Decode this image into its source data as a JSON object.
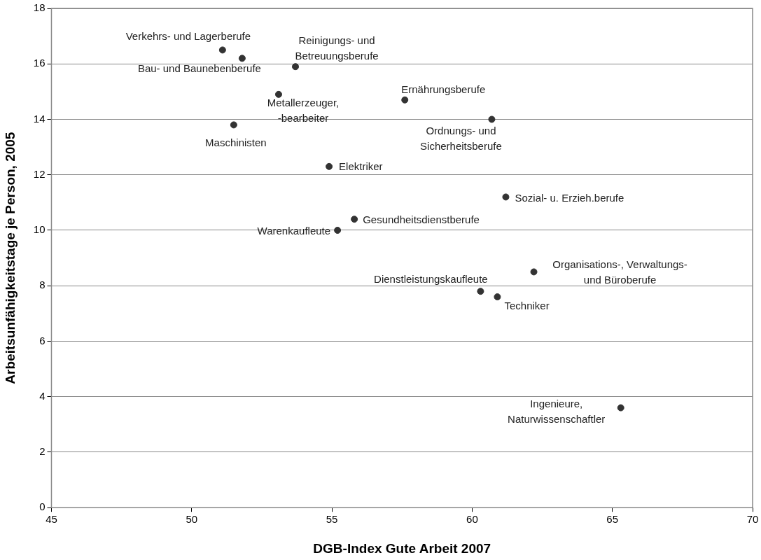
{
  "chart_data": {
    "type": "scatter",
    "xlabel": "DGB-Index Gute Arbeit 2007",
    "ylabel": "Arbeitsunfähigkeitstage je Person, 2005",
    "x": [
      51.1,
      51.8,
      53.7,
      53.1,
      51.5,
      54.9,
      57.6,
      60.7,
      61.2,
      55.8,
      55.2,
      62.2,
      60.3,
      60.9,
      65.3
    ],
    "series": [
      {
        "color": "#333333",
        "values": [
          16.5,
          16.2,
          15.9,
          14.9,
          13.8,
          12.3,
          14.7,
          14.0,
          11.2,
          10.4,
          10.0,
          8.5,
          7.8,
          7.6,
          3.6
        ]
      }
    ],
    "xlim": [
      45,
      70
    ],
    "xticks": [
      45,
      50,
      55,
      60,
      65,
      70
    ],
    "ylim": [
      0,
      18
    ],
    "yticks": [
      0,
      2,
      4,
      6,
      8,
      10,
      12,
      14,
      16,
      18
    ],
    "grid": "y",
    "legend": false,
    "marker": "circle",
    "annotations": [
      {
        "text": "Verkehrs- und Lagerberufe",
        "x": 51.1,
        "y": 16.5
      },
      {
        "text": "Bau- und Baunebenberufe",
        "x": 51.8,
        "y": 16.2
      },
      {
        "text": "Reinigungs- und\nBetreuungsberufe",
        "x": 53.7,
        "y": 15.9
      },
      {
        "text": "Metallerzeuger,\n-bearbeiter",
        "x": 53.1,
        "y": 14.9
      },
      {
        "text": "Maschinisten",
        "x": 51.5,
        "y": 13.8
      },
      {
        "text": "Elektriker",
        "x": 54.9,
        "y": 12.3
      },
      {
        "text": "Ernährungsberufe",
        "x": 57.6,
        "y": 14.7
      },
      {
        "text": "Ordnungs- und\nSicherheitsberufe",
        "x": 60.7,
        "y": 14.0
      },
      {
        "text": "Sozial- u. Erzieh.berufe",
        "x": 61.2,
        "y": 11.2
      },
      {
        "text": "Gesundheitsdienstberufe",
        "x": 55.8,
        "y": 10.4
      },
      {
        "text": "Warenkaufleute",
        "x": 55.2,
        "y": 10.0
      },
      {
        "text": "Organisations-, Verwaltungs-\nund Büroberufe",
        "x": 62.2,
        "y": 8.5
      },
      {
        "text": "Dienstleistungskaufleute",
        "x": 60.3,
        "y": 7.8
      },
      {
        "text": "Techniker",
        "x": 60.9,
        "y": 7.6
      },
      {
        "text": "Ingenieure,\nNaturwissenschaftler",
        "x": 65.3,
        "y": 3.6
      }
    ]
  }
}
